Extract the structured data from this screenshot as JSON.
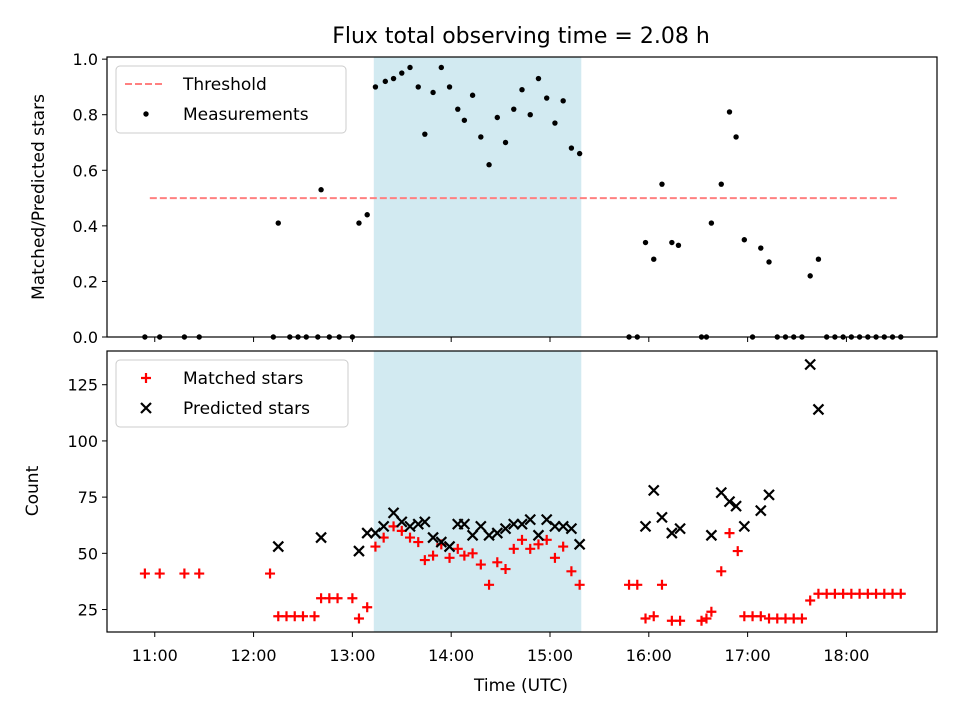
{
  "title": "Flux total observing time = 2.08 h",
  "colors": {
    "threshold": "#ff8080",
    "measurement": "#000000",
    "matched": "#ff0000",
    "predicted": "#000000",
    "span": "#add8e6"
  },
  "chart_data": [
    {
      "type": "scatter",
      "ylabel": "Matched/Predicted stars",
      "ylim": [
        0,
        1.0
      ],
      "yticks": [
        0.0,
        0.2,
        0.4,
        0.6,
        0.8,
        1.0
      ],
      "ytick_labels": [
        "0.0",
        "0.2",
        "0.4",
        "0.6",
        "0.8",
        "1.0"
      ],
      "shaded_span": [
        "13:13",
        "15:19"
      ],
      "legend": {
        "position": "top-left",
        "entries": [
          "Threshold",
          "Measurements"
        ]
      },
      "threshold": {
        "name": "Threshold",
        "value": 0.5,
        "x": [
          "10:57",
          "18:32"
        ]
      },
      "series": [
        {
          "name": "Measurements",
          "points": [
            [
              "10:54",
              0
            ],
            [
              "11:03",
              0
            ],
            [
              "11:18",
              0
            ],
            [
              "11:27",
              0
            ],
            [
              "12:12",
              0
            ],
            [
              "12:15",
              0.41
            ],
            [
              "12:22",
              0
            ],
            [
              "12:27",
              0
            ],
            [
              "12:32",
              0
            ],
            [
              "12:39",
              0
            ],
            [
              "12:41",
              0.53
            ],
            [
              "12:46",
              0
            ],
            [
              "12:52",
              0
            ],
            [
              "13:00",
              0
            ],
            [
              "13:04",
              0.41
            ],
            [
              "13:09",
              0.44
            ],
            [
              "13:14",
              0.9
            ],
            [
              "13:20",
              0.92
            ],
            [
              "13:25",
              0.93
            ],
            [
              "13:30",
              0.95
            ],
            [
              "13:35",
              0.97
            ],
            [
              "13:40",
              0.9
            ],
            [
              "13:44",
              0.73
            ],
            [
              "13:49",
              0.88
            ],
            [
              "13:54",
              0.97
            ],
            [
              "13:59",
              0.9
            ],
            [
              "14:04",
              0.82
            ],
            [
              "14:08",
              0.78
            ],
            [
              "14:13",
              0.87
            ],
            [
              "14:18",
              0.72
            ],
            [
              "14:23",
              0.62
            ],
            [
              "14:28",
              0.79
            ],
            [
              "14:33",
              0.7
            ],
            [
              "14:38",
              0.82
            ],
            [
              "14:43",
              0.89
            ],
            [
              "14:48",
              0.8
            ],
            [
              "14:53",
              0.93
            ],
            [
              "14:58",
              0.86
            ],
            [
              "15:03",
              0.77
            ],
            [
              "15:08",
              0.85
            ],
            [
              "15:13",
              0.68
            ],
            [
              "15:18",
              0.66
            ],
            [
              "15:48",
              0
            ],
            [
              "15:53",
              0
            ],
            [
              "15:58",
              0.34
            ],
            [
              "16:03",
              0.28
            ],
            [
              "16:08",
              0.55
            ],
            [
              "16:14",
              0.34
            ],
            [
              "16:18",
              0.33
            ],
            [
              "16:32",
              0
            ],
            [
              "16:35",
              0
            ],
            [
              "16:38",
              0.41
            ],
            [
              "16:44",
              0.55
            ],
            [
              "16:49",
              0.81
            ],
            [
              "16:53",
              0.72
            ],
            [
              "16:58",
              0.35
            ],
            [
              "17:03",
              0
            ],
            [
              "17:08",
              0.32
            ],
            [
              "17:13",
              0.27
            ],
            [
              "17:18",
              0
            ],
            [
              "17:23",
              0
            ],
            [
              "17:28",
              0
            ],
            [
              "17:33",
              0
            ],
            [
              "17:38",
              0.22
            ],
            [
              "17:43",
              0.28
            ],
            [
              "17:48",
              0
            ],
            [
              "17:53",
              0
            ],
            [
              "17:58",
              0
            ],
            [
              "18:03",
              0
            ],
            [
              "18:08",
              0
            ],
            [
              "18:13",
              0
            ],
            [
              "18:18",
              0
            ],
            [
              "18:23",
              0
            ],
            [
              "18:28",
              0
            ],
            [
              "18:33",
              0
            ]
          ]
        }
      ]
    },
    {
      "type": "scatter",
      "xlabel": "Time (UTC)",
      "ylabel": "Count",
      "xlim": [
        "10:31",
        "18:55"
      ],
      "ylim": [
        15,
        140
      ],
      "xtick_labels": [
        "11:00",
        "12:00",
        "13:00",
        "14:00",
        "15:00",
        "16:00",
        "17:00",
        "18:00"
      ],
      "yticks": [
        25,
        50,
        75,
        100,
        125
      ],
      "ytick_labels": [
        "25",
        "50",
        "75",
        "100",
        "125"
      ],
      "shaded_span": [
        "13:13",
        "15:19"
      ],
      "legend": {
        "position": "top-left",
        "entries": [
          "Matched stars",
          "Predicted stars"
        ]
      },
      "series": [
        {
          "name": "Matched stars",
          "marker": "+",
          "points": [
            [
              "10:54",
              41
            ],
            [
              "11:03",
              41
            ],
            [
              "11:18",
              41
            ],
            [
              "11:27",
              41
            ],
            [
              "12:10",
              41
            ],
            [
              "12:15",
              22
            ],
            [
              "12:20",
              22
            ],
            [
              "12:25",
              22
            ],
            [
              "12:30",
              22
            ],
            [
              "12:37",
              22
            ],
            [
              "12:41",
              30
            ],
            [
              "12:46",
              30
            ],
            [
              "12:51",
              30
            ],
            [
              "13:00",
              30
            ],
            [
              "13:04",
              21
            ],
            [
              "13:09",
              26
            ],
            [
              "13:14",
              53
            ],
            [
              "13:19",
              57
            ],
            [
              "13:25",
              62
            ],
            [
              "13:30",
              60
            ],
            [
              "13:35",
              57
            ],
            [
              "13:40",
              55
            ],
            [
              "13:44",
              47
            ],
            [
              "13:49",
              49
            ],
            [
              "13:54",
              54
            ],
            [
              "13:59",
              48
            ],
            [
              "14:04",
              52
            ],
            [
              "14:08",
              49
            ],
            [
              "14:13",
              50
            ],
            [
              "14:18",
              45
            ],
            [
              "14:23",
              36
            ],
            [
              "14:28",
              46
            ],
            [
              "14:33",
              43
            ],
            [
              "14:38",
              52
            ],
            [
              "14:43",
              56
            ],
            [
              "14:48",
              52
            ],
            [
              "14:53",
              54
            ],
            [
              "14:58",
              56
            ],
            [
              "15:03",
              48
            ],
            [
              "15:08",
              53
            ],
            [
              "15:13",
              42
            ],
            [
              "15:18",
              36
            ],
            [
              "15:48",
              36
            ],
            [
              "15:53",
              36
            ],
            [
              "15:58",
              21
            ],
            [
              "16:03",
              22
            ],
            [
              "16:08",
              36
            ],
            [
              "16:14",
              20
            ],
            [
              "16:19",
              20
            ],
            [
              "16:32",
              20
            ],
            [
              "16:35",
              21
            ],
            [
              "16:38",
              24
            ],
            [
              "16:44",
              42
            ],
            [
              "16:49",
              59
            ],
            [
              "16:54",
              51
            ],
            [
              "16:58",
              22
            ],
            [
              "17:03",
              22
            ],
            [
              "17:08",
              22
            ],
            [
              "17:13",
              21
            ],
            [
              "17:18",
              21
            ],
            [
              "17:23",
              21
            ],
            [
              "17:28",
              21
            ],
            [
              "17:33",
              21
            ],
            [
              "17:38",
              29
            ],
            [
              "17:43",
              32
            ],
            [
              "17:48",
              32
            ],
            [
              "17:53",
              32
            ],
            [
              "17:58",
              32
            ],
            [
              "18:03",
              32
            ],
            [
              "18:08",
              32
            ],
            [
              "18:13",
              32
            ],
            [
              "18:18",
              32
            ],
            [
              "18:23",
              32
            ],
            [
              "18:28",
              32
            ],
            [
              "18:33",
              32
            ]
          ]
        },
        {
          "name": "Predicted stars",
          "marker": "x",
          "points": [
            [
              "12:15",
              53
            ],
            [
              "12:41",
              57
            ],
            [
              "13:04",
              51
            ],
            [
              "13:09",
              59
            ],
            [
              "13:14",
              59
            ],
            [
              "13:19",
              62
            ],
            [
              "13:25",
              68
            ],
            [
              "13:30",
              64
            ],
            [
              "13:35",
              62
            ],
            [
              "13:40",
              63
            ],
            [
              "13:44",
              64
            ],
            [
              "13:49",
              57
            ],
            [
              "13:54",
              55
            ],
            [
              "13:59",
              53
            ],
            [
              "14:04",
              63
            ],
            [
              "14:08",
              63
            ],
            [
              "14:13",
              58
            ],
            [
              "14:18",
              62
            ],
            [
              "14:23",
              58
            ],
            [
              "14:28",
              59
            ],
            [
              "14:33",
              61
            ],
            [
              "14:38",
              63
            ],
            [
              "14:43",
              63
            ],
            [
              "14:48",
              65
            ],
            [
              "14:53",
              58
            ],
            [
              "14:58",
              65
            ],
            [
              "15:03",
              62
            ],
            [
              "15:08",
              62
            ],
            [
              "15:13",
              61
            ],
            [
              "15:18",
              54
            ],
            [
              "15:58",
              62
            ],
            [
              "16:03",
              78
            ],
            [
              "16:08",
              66
            ],
            [
              "16:14",
              59
            ],
            [
              "16:19",
              61
            ],
            [
              "16:38",
              58
            ],
            [
              "16:44",
              77
            ],
            [
              "16:49",
              73
            ],
            [
              "16:53",
              71
            ],
            [
              "16:58",
              62
            ],
            [
              "17:08",
              69
            ],
            [
              "17:13",
              76
            ],
            [
              "17:38",
              134
            ],
            [
              "17:43",
              114
            ]
          ]
        }
      ]
    }
  ]
}
